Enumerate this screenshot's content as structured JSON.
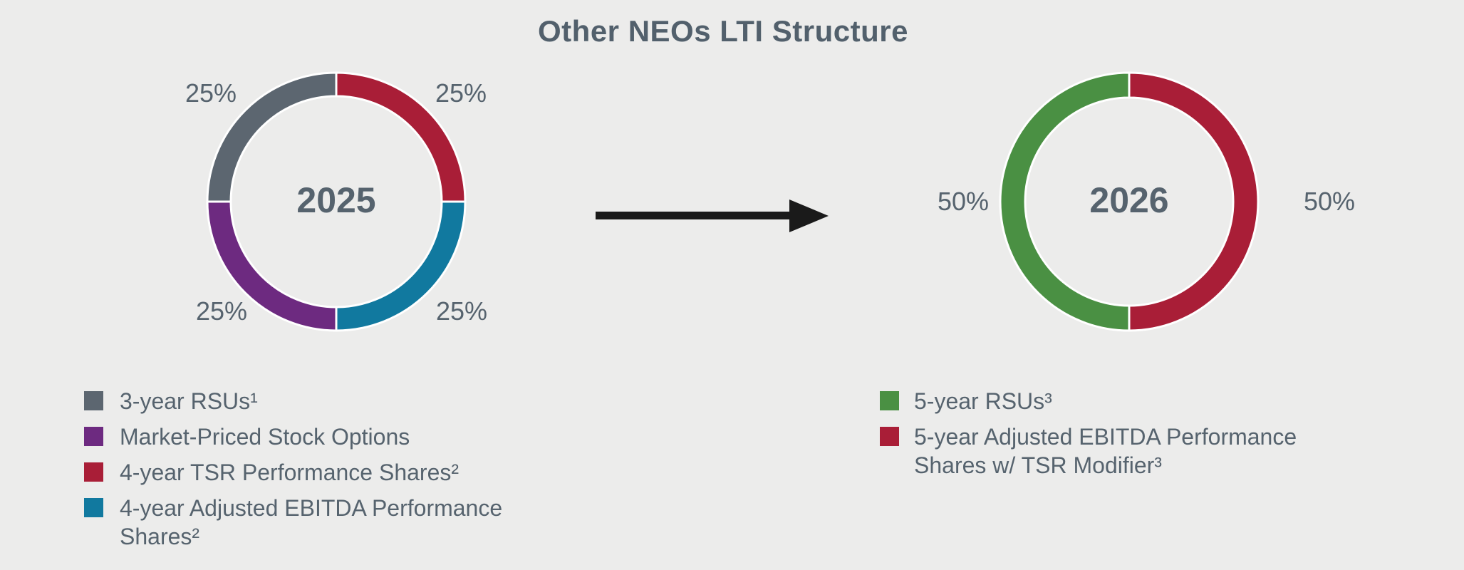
{
  "title": "Other NEOs LTI Structure",
  "colors": {
    "background": "#ececeb",
    "text": "#56636e",
    "gray": "#5c6670",
    "purple": "#6d2a80",
    "crimson": "#a91e37",
    "teal": "#11799f",
    "green": "#4a9043",
    "arrow": "#1a1a1a",
    "donut_hole": "#ffffff"
  },
  "chart_data": [
    {
      "type": "pie",
      "style": "donut",
      "center_label": "2025",
      "units": "%",
      "start_angle_deg": 0,
      "direction": "clockwise",
      "segments": [
        {
          "name": "4-year TSR Performance Shares²",
          "value": 25,
          "display": "25%",
          "color_key": "crimson"
        },
        {
          "name": "4-year Adjusted EBITDA Performance Shares²",
          "value": 25,
          "display": "25%",
          "color_key": "teal"
        },
        {
          "name": "Market-Priced Stock Options",
          "value": 25,
          "display": "25%",
          "color_key": "purple"
        },
        {
          "name": "3-year RSUs¹",
          "value": 25,
          "display": "25%",
          "color_key": "gray"
        }
      ],
      "legend_position": "bottom-left",
      "legend": [
        {
          "label": "3-year RSUs¹",
          "color_key": "gray"
        },
        {
          "label": "Market-Priced Stock Options",
          "color_key": "purple"
        },
        {
          "label": "4-year TSR Performance Shares²",
          "color_key": "crimson"
        },
        {
          "label": "4-year Adjusted EBITDA Performance Shares²",
          "color_key": "teal"
        }
      ]
    },
    {
      "type": "pie",
      "style": "donut",
      "center_label": "2026",
      "units": "%",
      "start_angle_deg": 0,
      "direction": "clockwise",
      "segments": [
        {
          "name": "5-year Adjusted EBITDA Performance Shares w/ TSR Modifier³",
          "value": 50,
          "display": "50%",
          "color_key": "crimson"
        },
        {
          "name": "5-year RSUs³",
          "value": 50,
          "display": "50%",
          "color_key": "green"
        }
      ],
      "legend_position": "bottom-right",
      "legend": [
        {
          "label": "5-year RSUs³",
          "color_key": "green"
        },
        {
          "label": "5-year Adjusted EBITDA Performance Shares w/ TSR Modifier³",
          "color_key": "crimson"
        }
      ]
    }
  ],
  "arrow": {
    "direction": "right"
  }
}
